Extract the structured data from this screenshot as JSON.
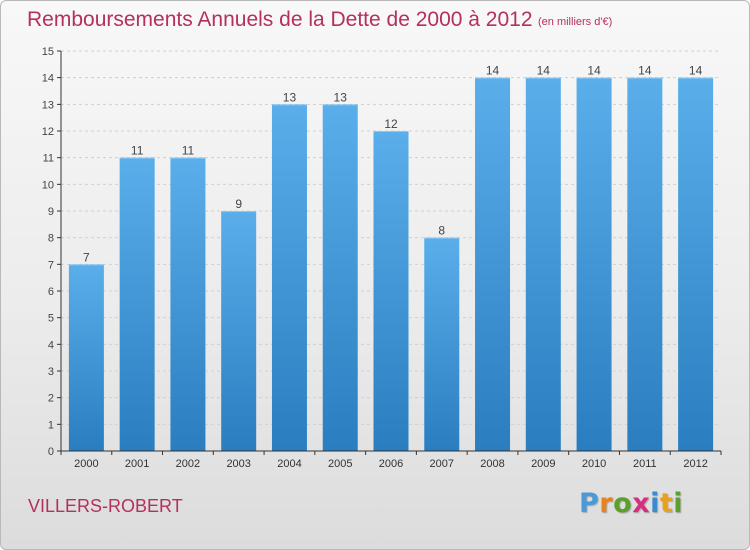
{
  "header": {
    "title": "Remboursements Annuels de la Dette de 2000 à 2012",
    "unit": "(en milliers d'€)"
  },
  "footer": {
    "commune": "VILLERS-ROBERT",
    "logo": {
      "letters": [
        "P",
        "r",
        "o",
        "x",
        "i",
        "t",
        "i"
      ]
    }
  },
  "colors": {
    "title": "#b4305e",
    "bar_top": "#5aaeea",
    "bar_bottom": "#2a7ec0",
    "axis": "#333333",
    "grid": "#d0d0d0",
    "logo": [
      "#4a9ad8",
      "#e8821e",
      "#5aa02c",
      "#d62f7e",
      "#3a8ad0",
      "#e8a020",
      "#5aa02c"
    ]
  },
  "chart_data": {
    "type": "bar",
    "categories": [
      "2000",
      "2001",
      "2002",
      "2003",
      "2004",
      "2005",
      "2006",
      "2007",
      "2008",
      "2009",
      "2010",
      "2011",
      "2012"
    ],
    "values": [
      7,
      11,
      11,
      9,
      13,
      13,
      12,
      8,
      14,
      14,
      14,
      14,
      14
    ],
    "ylim": [
      0,
      15
    ],
    "yticks": [
      0,
      1,
      2,
      3,
      4,
      5,
      6,
      7,
      8,
      9,
      10,
      11,
      12,
      13,
      14,
      15
    ],
    "grid": true,
    "data_labels": true
  }
}
